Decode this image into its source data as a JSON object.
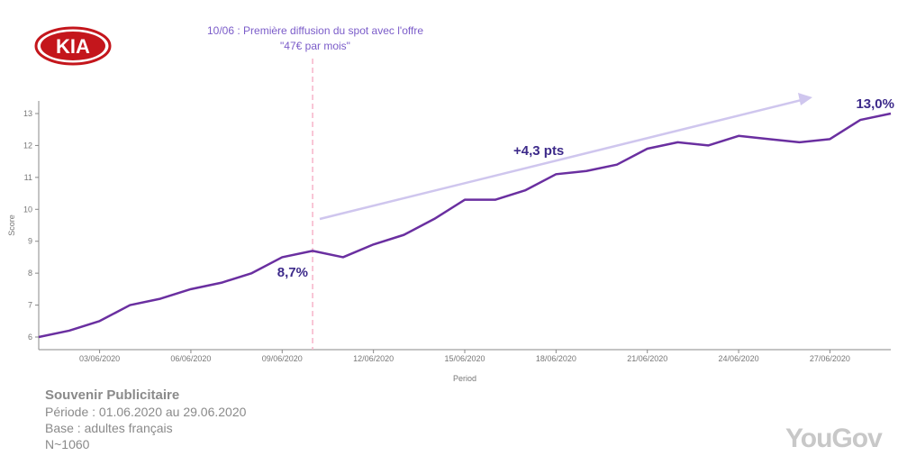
{
  "brand": {
    "logo": "KIA",
    "source_logo": "YouGov"
  },
  "annotation": {
    "line1": "10/06 : Première diffusion du spot avec l'offre",
    "line2": "\"47€ par mois\""
  },
  "footer": {
    "title": "Souvenir Publicitaire",
    "period": "Période : 01.06.2020 au 29.06.2020",
    "base": "Base : adultes français",
    "n": "N~1060"
  },
  "colors": {
    "line": "#6a2fa0",
    "trend": "#cfc6ee",
    "event": "#f6b3c8",
    "label": "#3d2a8a"
  },
  "chart_data": {
    "type": "line",
    "title": "",
    "xlabel": "Period",
    "ylabel": "Score",
    "ylim": [
      5.6,
      13.4
    ],
    "yticks": [
      6,
      7,
      8,
      9,
      10,
      11,
      12,
      13
    ],
    "xticks": [
      {
        "day": 3,
        "label": "03/06/2020"
      },
      {
        "day": 6,
        "label": "06/06/2020"
      },
      {
        "day": 9,
        "label": "09/06/2020"
      },
      {
        "day": 12,
        "label": "12/06/2020"
      },
      {
        "day": 15,
        "label": "15/06/2020"
      },
      {
        "day": 18,
        "label": "18/06/2020"
      },
      {
        "day": 21,
        "label": "21/06/2020"
      },
      {
        "day": 24,
        "label": "24/06/2020"
      },
      {
        "day": 27,
        "label": "27/06/2020"
      }
    ],
    "x": [
      1,
      2,
      3,
      4,
      5,
      6,
      7,
      8,
      9,
      10,
      11,
      12,
      13,
      14,
      15,
      16,
      17,
      18,
      19,
      20,
      21,
      22,
      23,
      24,
      25,
      26,
      27,
      28,
      29
    ],
    "series": [
      {
        "name": "Score",
        "values": [
          6.0,
          6.2,
          6.5,
          7.0,
          7.2,
          7.5,
          7.7,
          8.0,
          8.5,
          8.7,
          8.5,
          8.9,
          9.2,
          9.7,
          10.3,
          10.3,
          10.6,
          11.1,
          11.2,
          11.4,
          11.9,
          12.1,
          12.0,
          12.3,
          12.2,
          12.1,
          12.2,
          12.8,
          13.0
        ]
      }
    ],
    "event_day": 10,
    "labels": {
      "start": "8,7%",
      "end": "13,0%",
      "delta": "+4,3 pts"
    }
  }
}
